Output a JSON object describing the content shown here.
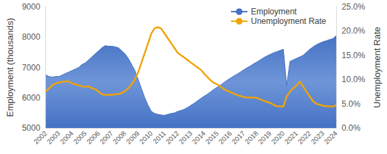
{
  "chart_data": {
    "type": "line",
    "y_label": "Employment (thousands)",
    "y2_label": "Unemployment Rate",
    "categories": [
      "2002",
      null,
      null,
      null,
      "2003",
      null,
      null,
      null,
      "2004",
      null,
      null,
      null,
      "2005",
      null,
      null,
      null,
      "2006",
      null,
      null,
      null,
      "2007",
      null,
      null,
      null,
      "2008",
      null,
      null,
      null,
      "2009",
      null,
      null,
      null,
      "2010",
      null,
      null,
      null,
      "2011",
      null,
      null,
      null,
      "2012",
      null,
      null,
      null,
      "2013",
      null,
      null,
      null,
      "2014",
      null,
      null,
      null,
      "2015",
      null,
      null,
      null,
      "2016",
      null,
      null,
      null,
      "2017",
      null,
      null,
      null,
      "2018",
      null,
      null,
      null,
      "2019",
      null,
      null,
      null,
      "2020",
      null,
      null,
      null,
      "2021",
      null,
      null,
      null,
      "2022",
      null,
      null,
      null,
      "2023",
      null,
      null,
      null,
      "2024"
    ],
    "series": [
      {
        "name": "Employment",
        "type": "area",
        "color": "#4472c4",
        "axis": "y",
        "values": [
          6750,
          6700,
          6680,
          6700,
          6700,
          6750,
          6800,
          6850,
          6900,
          6950,
          7000,
          7100,
          7150,
          7250,
          7350,
          7450,
          7550,
          7650,
          7720,
          7700,
          7700,
          7680,
          7650,
          7550,
          7450,
          7300,
          7100,
          6900,
          6600,
          6300,
          6000,
          5750,
          5550,
          5480,
          5450,
          5430,
          5420,
          5450,
          5480,
          5500,
          5550,
          5580,
          5620,
          5680,
          5750,
          5820,
          5900,
          5980,
          6050,
          6120,
          6200,
          6280,
          6350,
          6420,
          6500,
          6580,
          6650,
          6720,
          6780,
          6850,
          6920,
          6990,
          7050,
          7120,
          7180,
          7250,
          7320,
          7380,
          7430,
          7480,
          7520,
          7560,
          7600,
          6400,
          7200,
          7250,
          7300,
          7350,
          7400,
          7500,
          7600,
          7680,
          7750,
          7800,
          7850,
          7880,
          7920,
          7950,
          8050
        ]
      },
      {
        "name": "Unemployment Rate",
        "type": "line",
        "color": "#f0a30a",
        "axis": "y2",
        "values": [
          7.5,
          8.2,
          8.8,
          9.2,
          9.4,
          9.5,
          9.6,
          9.6,
          9.2,
          9.0,
          8.8,
          8.6,
          8.5,
          8.6,
          8.2,
          8.0,
          7.5,
          7.0,
          6.8,
          6.9,
          6.8,
          7.0,
          7.0,
          7.2,
          7.6,
          8.2,
          9.0,
          10.0,
          11.5,
          13.5,
          15.5,
          17.5,
          19.5,
          20.6,
          20.8,
          20.5,
          19.5,
          18.5,
          17.5,
          16.5,
          15.5,
          15.0,
          14.5,
          14.0,
          13.5,
          13.0,
          12.5,
          12.0,
          11.2,
          10.5,
          9.8,
          9.3,
          9.0,
          8.5,
          8.0,
          7.7,
          7.4,
          7.1,
          6.8,
          6.6,
          6.4,
          6.3,
          6.3,
          6.3,
          6.2,
          5.9,
          5.6,
          5.4,
          5.2,
          4.8,
          4.5,
          4.5,
          4.4,
          6.5,
          7.5,
          8.2,
          8.8,
          9.6,
          8.5,
          7.5,
          6.5,
          5.5,
          5.0,
          4.8,
          4.6,
          4.5,
          4.5,
          4.4,
          4.7
        ]
      }
    ],
    "ylim": [
      5000,
      9000
    ],
    "yticks": [
      5000,
      6000,
      7000,
      8000,
      9000
    ],
    "y2lim": [
      0,
      25
    ],
    "y2ticks": [
      {
        "value": 0,
        "label": "0.0%"
      },
      {
        "value": 5,
        "label": "5.0%"
      },
      {
        "value": 10,
        "label": "10.0%"
      },
      {
        "value": 15,
        "label": "15.0%"
      },
      {
        "value": 20,
        "label": "20.0%"
      },
      {
        "value": 25,
        "label": "25.0%"
      }
    ],
    "grid": false,
    "legend": "top-right"
  }
}
